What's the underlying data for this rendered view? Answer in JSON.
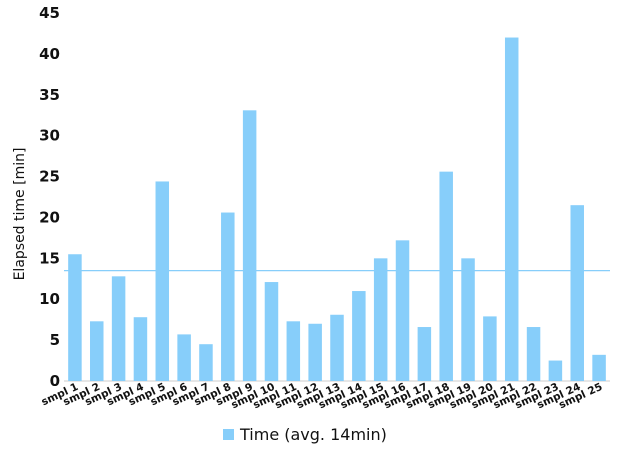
{
  "chart_data": {
    "type": "bar",
    "categories": [
      "smpl 1",
      "smpl 2",
      "smpl 3",
      "smpl 4",
      "smpl 5",
      "smpl 6",
      "smpl 7",
      "smpl 8",
      "smpl 9",
      "smpl 10",
      "smpl 11",
      "smpl 12",
      "smpl 13",
      "smpl 14",
      "smpl 15",
      "smpl 16",
      "smpl 17",
      "smpl 18",
      "smpl 19",
      "smpl 20",
      "smpl 21",
      "smpl 22",
      "smpl 23",
      "smpl 24",
      "smpl 25"
    ],
    "series": [
      {
        "name": "Time (avg. 14min)",
        "values": [
          15.5,
          7.3,
          12.8,
          7.8,
          24.4,
          5.7,
          4.5,
          20.6,
          33.1,
          12.1,
          7.3,
          7.0,
          8.1,
          11.0,
          15.0,
          17.2,
          6.6,
          25.6,
          15.0,
          7.9,
          42.0,
          6.6,
          2.5,
          21.5,
          3.2
        ]
      }
    ],
    "average_line": 13.5,
    "title": "",
    "xlabel": "",
    "ylabel": "Elapsed time [min]",
    "ylim": [
      0,
      45
    ],
    "yticks": [
      0,
      5,
      10,
      15,
      20,
      25,
      30,
      35,
      40,
      45
    ],
    "grid": false,
    "legend_position": "bottom-center",
    "colors": {
      "bar": "#87CEFA",
      "average_line": "#87CEFA",
      "axis": "#cccccc"
    }
  }
}
